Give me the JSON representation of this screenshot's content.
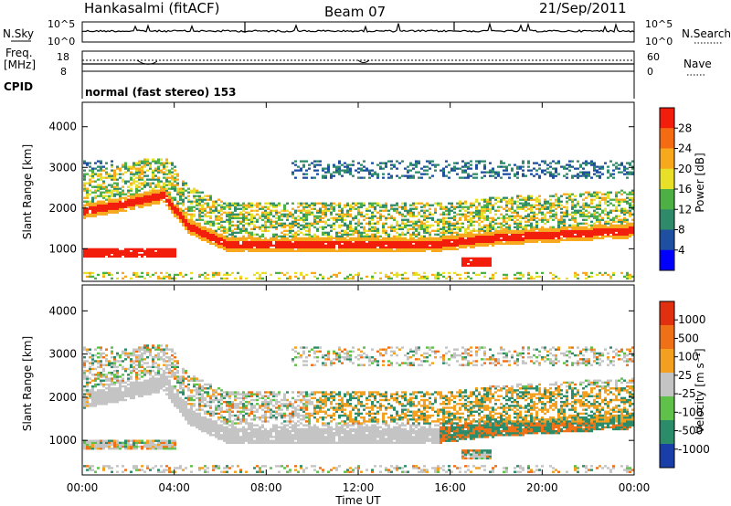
{
  "header": {
    "station": "Hankasalmi (fitACF)",
    "beam": "Beam 07",
    "date": "21/Sep/2011"
  },
  "strips": {
    "nsky_label": "N.Sky",
    "nsky_ticks": [
      "10^5",
      "10^0"
    ],
    "nsearch_label": "N.Search",
    "nsearch_ticks": [
      "10^5",
      "10^0"
    ],
    "freq_label_1": "Freq.",
    "freq_label_2": "[MHz]",
    "freq_ticks": [
      "18",
      "8"
    ],
    "nave_label": "Nave",
    "nave_ticks": [
      "60",
      "0"
    ],
    "cpid_label": "CPID",
    "cpid_text": "normal (fast stereo) 153"
  },
  "chart_data": [
    {
      "type": "heatmap",
      "title": "",
      "ylabel": "Slant Range [km]",
      "xlabel": "",
      "ylim": [
        200,
        4600
      ],
      "yticks": [
        "1000",
        "2000",
        "3000",
        "4000"
      ],
      "colorbar": {
        "label": "Power [dB]",
        "ticks": [
          "28",
          "24",
          "20",
          "16",
          "12",
          "8",
          "4"
        ],
        "colors": [
          "#0000ff",
          "#1f4fa0",
          "#2f8a6a",
          "#4cb044",
          "#e8e028",
          "#f7a81c",
          "#f46b12",
          "#f21d0b"
        ]
      }
    },
    {
      "type": "heatmap",
      "title": "",
      "ylabel": "Slant Range [km]",
      "xlabel": "Time UT",
      "ylim": [
        200,
        4600
      ],
      "yticks": [
        "1000",
        "2000",
        "3000",
        "4000"
      ],
      "xticks": [
        "00:00",
        "04:00",
        "08:00",
        "12:00",
        "16:00",
        "20:00",
        "00:00"
      ],
      "colorbar": {
        "label": "Velocity [m s⁻¹]",
        "ticks": [
          "1000",
          "500",
          "100",
          "25",
          "-25",
          "-100",
          "-500",
          "-1000"
        ],
        "colors": [
          "#1a3ea8",
          "#2c8c6a",
          "#5fc04a",
          "#c4c4c4",
          "#f3a020",
          "#f07018",
          "#e03010"
        ]
      }
    }
  ],
  "colors": {
    "ground_scatter": "#c4c4c4"
  }
}
